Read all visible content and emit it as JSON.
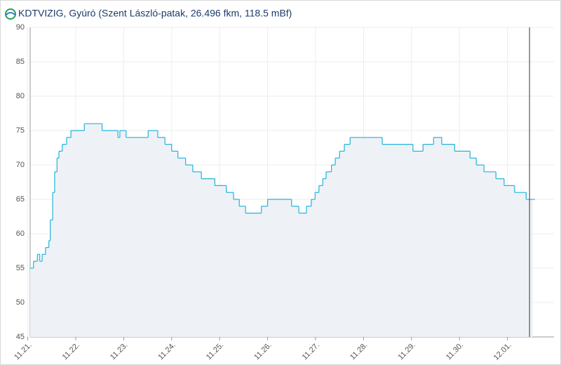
{
  "chart_data": {
    "type": "step-area",
    "title": "KDTVIZIG, Gyúró (Szent László-patak, 26.496 fkm, 118.5 mBf)",
    "x": [
      0.05,
      0.12,
      0.2,
      0.25,
      0.3,
      0.37,
      0.44,
      0.47,
      0.52,
      0.56,
      0.61,
      0.65,
      0.72,
      0.81,
      0.9,
      1.18,
      1.55,
      1.88,
      1.92,
      2.05,
      2.51,
      2.71,
      2.86,
      3.0,
      3.13,
      3.29,
      3.44,
      3.62,
      3.9,
      4.14,
      4.29,
      4.41,
      4.54,
      4.87,
      5.0,
      5.5,
      5.65,
      5.81,
      5.91,
      5.99,
      6.07,
      6.15,
      6.22,
      6.33,
      6.41,
      6.5,
      6.6,
      6.72,
      7.39,
      8.03,
      8.24,
      8.46,
      8.63,
      8.9,
      9.22,
      9.35,
      9.51,
      9.76,
      9.93,
      10.15,
      10.39,
      10.53
    ],
    "series": [
      {
        "color": "#22b4dc",
        "values": [
          55,
          56,
          57,
          56,
          57,
          58,
          59,
          62,
          66,
          69,
          71,
          72,
          73,
          74,
          75,
          76,
          75,
          74,
          75,
          74,
          75,
          74,
          73,
          72,
          71,
          70,
          69,
          68,
          67,
          66,
          65,
          64,
          63,
          64,
          65,
          64,
          63,
          64,
          65,
          66,
          67,
          68,
          69,
          70,
          71,
          72,
          73,
          74,
          73,
          72,
          73,
          74,
          73,
          72,
          71,
          70,
          69,
          68,
          67,
          66,
          65,
          65
        ]
      }
    ],
    "area_color": "#eef1f6",
    "vline": 10.46,
    "xlim": [
      0.05,
      10.97
    ],
    "xticks": [
      {
        "value": 0,
        "label": "11.21."
      },
      {
        "value": 1,
        "label": "11.22."
      },
      {
        "value": 2,
        "label": "11.23."
      },
      {
        "value": 3,
        "label": "11.24."
      },
      {
        "value": 4,
        "label": "11.25."
      },
      {
        "value": 5,
        "label": "11.26."
      },
      {
        "value": 6,
        "label": "11.27."
      },
      {
        "value": 7,
        "label": "11.28."
      },
      {
        "value": 8,
        "label": "11.29."
      },
      {
        "value": 9,
        "label": "11.30."
      },
      {
        "value": 10,
        "label": "12.01."
      }
    ],
    "ylim": [
      45,
      90
    ],
    "yticks": [
      45,
      50,
      55,
      60,
      65,
      70,
      75,
      80,
      85,
      90
    ],
    "grid": true
  }
}
